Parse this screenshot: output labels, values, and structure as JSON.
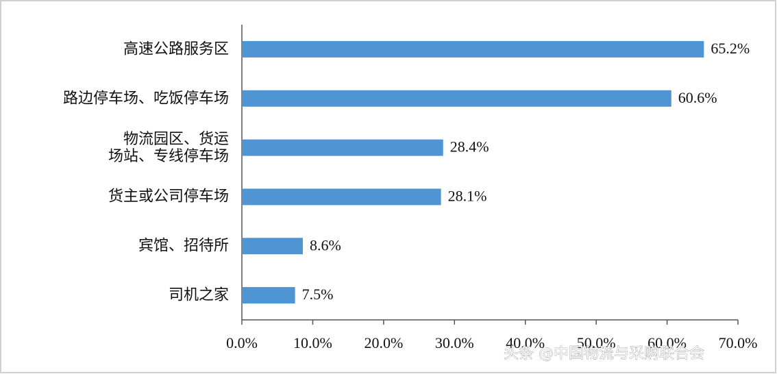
{
  "chart_data": {
    "type": "bar",
    "orientation": "horizontal",
    "categories": [
      "高速公路服务区",
      "路边停车场、吃饭停车场",
      "物流园区、货运\n场站、专线停车场",
      "货主或公司停车场",
      "宾馆、招待所",
      "司机之家"
    ],
    "values": [
      65.2,
      60.6,
      28.4,
      28.1,
      8.6,
      7.5
    ],
    "value_labels": [
      "65.2%",
      "60.6%",
      "28.4%",
      "28.1%",
      "8.6%",
      "7.5%"
    ],
    "color": "#4f95d4",
    "xlim": [
      0,
      70
    ],
    "xticks": [
      {
        "value": 0,
        "label": "0.0%"
      },
      {
        "value": 10,
        "label": "10.0%"
      },
      {
        "value": 20,
        "label": "20.0%"
      },
      {
        "value": 30,
        "label": "30.0%"
      },
      {
        "value": 40,
        "label": "40.0%"
      },
      {
        "value": 50,
        "label": "50.0%"
      },
      {
        "value": 60,
        "label": "60.0%"
      },
      {
        "value": 70,
        "label": "70.0%"
      }
    ],
    "watermark": "头条 @中国物流与采购联合会"
  }
}
